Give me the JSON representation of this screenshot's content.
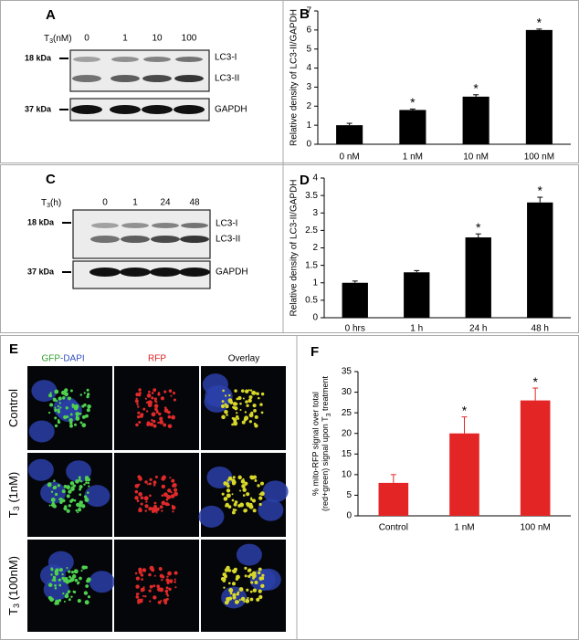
{
  "chart_data": [
    {
      "type": "bar",
      "label": "B",
      "ylabel": "Relative density of LC3-II/GAPDH",
      "categories": [
        "0 nM",
        "1 nM",
        "10 nM",
        "100 nM"
      ],
      "values": [
        1,
        1.8,
        2.5,
        6
      ],
      "errors": [
        0.1,
        0.05,
        0.1,
        0.05
      ],
      "annotations": [
        null,
        "*",
        "*",
        "*"
      ],
      "color": "#000000",
      "ylim": [
        0,
        7
      ],
      "yticks": [
        0,
        1,
        2,
        3,
        4,
        5,
        6,
        7
      ],
      "grid": false
    },
    {
      "type": "bar",
      "label": "D",
      "ylabel": "Relative density of LC3-II/GAPDH",
      "categories": [
        "0 hrs",
        "1 h",
        "24 h",
        "48 h"
      ],
      "values": [
        1,
        1.3,
        2.3,
        3.3
      ],
      "errors": [
        0.05,
        0.05,
        0.1,
        0.15
      ],
      "annotations": [
        null,
        null,
        "*",
        "*"
      ],
      "color": "#000000",
      "ylim": [
        0,
        4
      ],
      "yticks": [
        0,
        0.5,
        1,
        1.5,
        2,
        2.5,
        3,
        3.5,
        4
      ],
      "grid": false
    },
    {
      "type": "bar",
      "label": "F",
      "ylabel": [
        "% mito-RFP signal over total",
        "(red+green) signal upon T",
        "3",
        " treatment"
      ],
      "categories": [
        "Control",
        "1 nM",
        "100 nM"
      ],
      "values": [
        8,
        20,
        28
      ],
      "errors": [
        2,
        4,
        3
      ],
      "annotations": [
        null,
        "*",
        "*"
      ],
      "color": "#e42526",
      "ylim": [
        0,
        35
      ],
      "yticks": [
        0,
        5,
        10,
        15,
        20,
        25,
        30,
        35
      ],
      "grid": false
    }
  ],
  "blots": [
    {
      "label": "A",
      "header": [
        "T",
        "3",
        "(nM)"
      ],
      "lanes": [
        "0",
        "1",
        "10",
        "100"
      ],
      "markers": [
        "18 kDa",
        "37 kDa"
      ],
      "bands": [
        "LC3-I",
        "LC3-II",
        "GAPDH"
      ]
    },
    {
      "label": "C",
      "header": [
        "T",
        "3",
        "(h)"
      ],
      "lanes": [
        "0",
        "1",
        "24",
        "48"
      ],
      "markers": [
        "18 kDa",
        "37 kDa"
      ],
      "bands": [
        "LC3-I",
        "LC3-II",
        "GAPDH"
      ]
    }
  ],
  "microscopy": {
    "label": "E",
    "columns": [
      "GFP",
      "-DAPI",
      "RFP",
      "Overlay"
    ],
    "rows": [
      [
        "Control"
      ],
      [
        "T",
        "3",
        " (1nM)"
      ],
      [
        "T",
        "3",
        " (100nM)"
      ]
    ]
  }
}
